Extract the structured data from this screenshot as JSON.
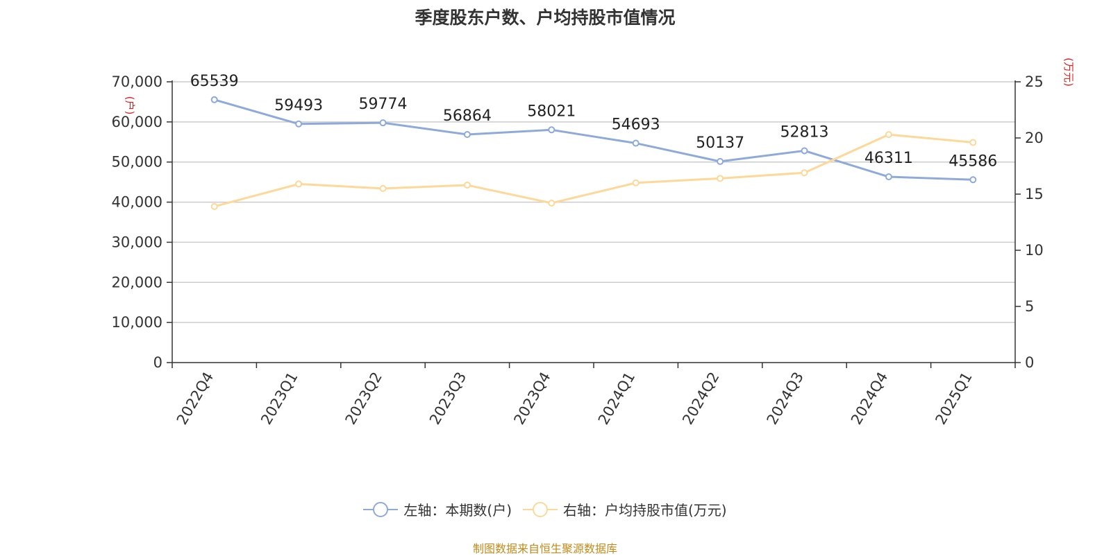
{
  "chart_data": {
    "type": "line",
    "title": "季度股东户数、户均持股市值情况",
    "categories": [
      "2022Q4",
      "2023Q1",
      "2023Q2",
      "2023Q3",
      "2023Q4",
      "2024Q1",
      "2024Q2",
      "2024Q3",
      "2024Q4",
      "2025Q1"
    ],
    "left_axis": {
      "unit_label": "(户)",
      "ylim": [
        0,
        70000
      ],
      "ticks": [
        0,
        10000,
        20000,
        30000,
        40000,
        50000,
        60000,
        70000
      ],
      "tick_labels": [
        "0",
        "10,000",
        "20,000",
        "30,000",
        "40,000",
        "50,000",
        "60,000",
        "70,000"
      ]
    },
    "right_axis": {
      "unit_label": "(万元)",
      "ylim": [
        0,
        25
      ],
      "ticks": [
        0,
        5,
        10,
        15,
        20,
        25
      ],
      "tick_labels": [
        "0",
        "5",
        "10",
        "15",
        "20",
        "25"
      ]
    },
    "series": [
      {
        "name": "左轴：本期数(户)",
        "axis": "left",
        "color": "#8eaadb",
        "values": [
          65539,
          59493,
          59774,
          56864,
          58021,
          54693,
          50137,
          52813,
          46311,
          45586
        ],
        "data_labels": [
          "65539",
          "59493",
          "59774",
          "56864",
          "58021",
          "54693",
          "50137",
          "52813",
          "46311",
          "45586"
        ]
      },
      {
        "name": "右轴：户均持股市值(万元)",
        "axis": "right",
        "color": "#fdd898",
        "values": [
          13.9,
          15.9,
          15.5,
          15.8,
          14.2,
          16.0,
          16.4,
          16.9,
          20.3,
          19.6
        ]
      }
    ],
    "grid": true,
    "legend_position": "bottom"
  },
  "source_note": "制图数据来自恒生聚源数据库",
  "colors": {
    "left_unit": "#e02020",
    "right_unit": "#e02020",
    "axis": "#333333",
    "grid": "#cccccc",
    "source": "#c28a1a"
  }
}
